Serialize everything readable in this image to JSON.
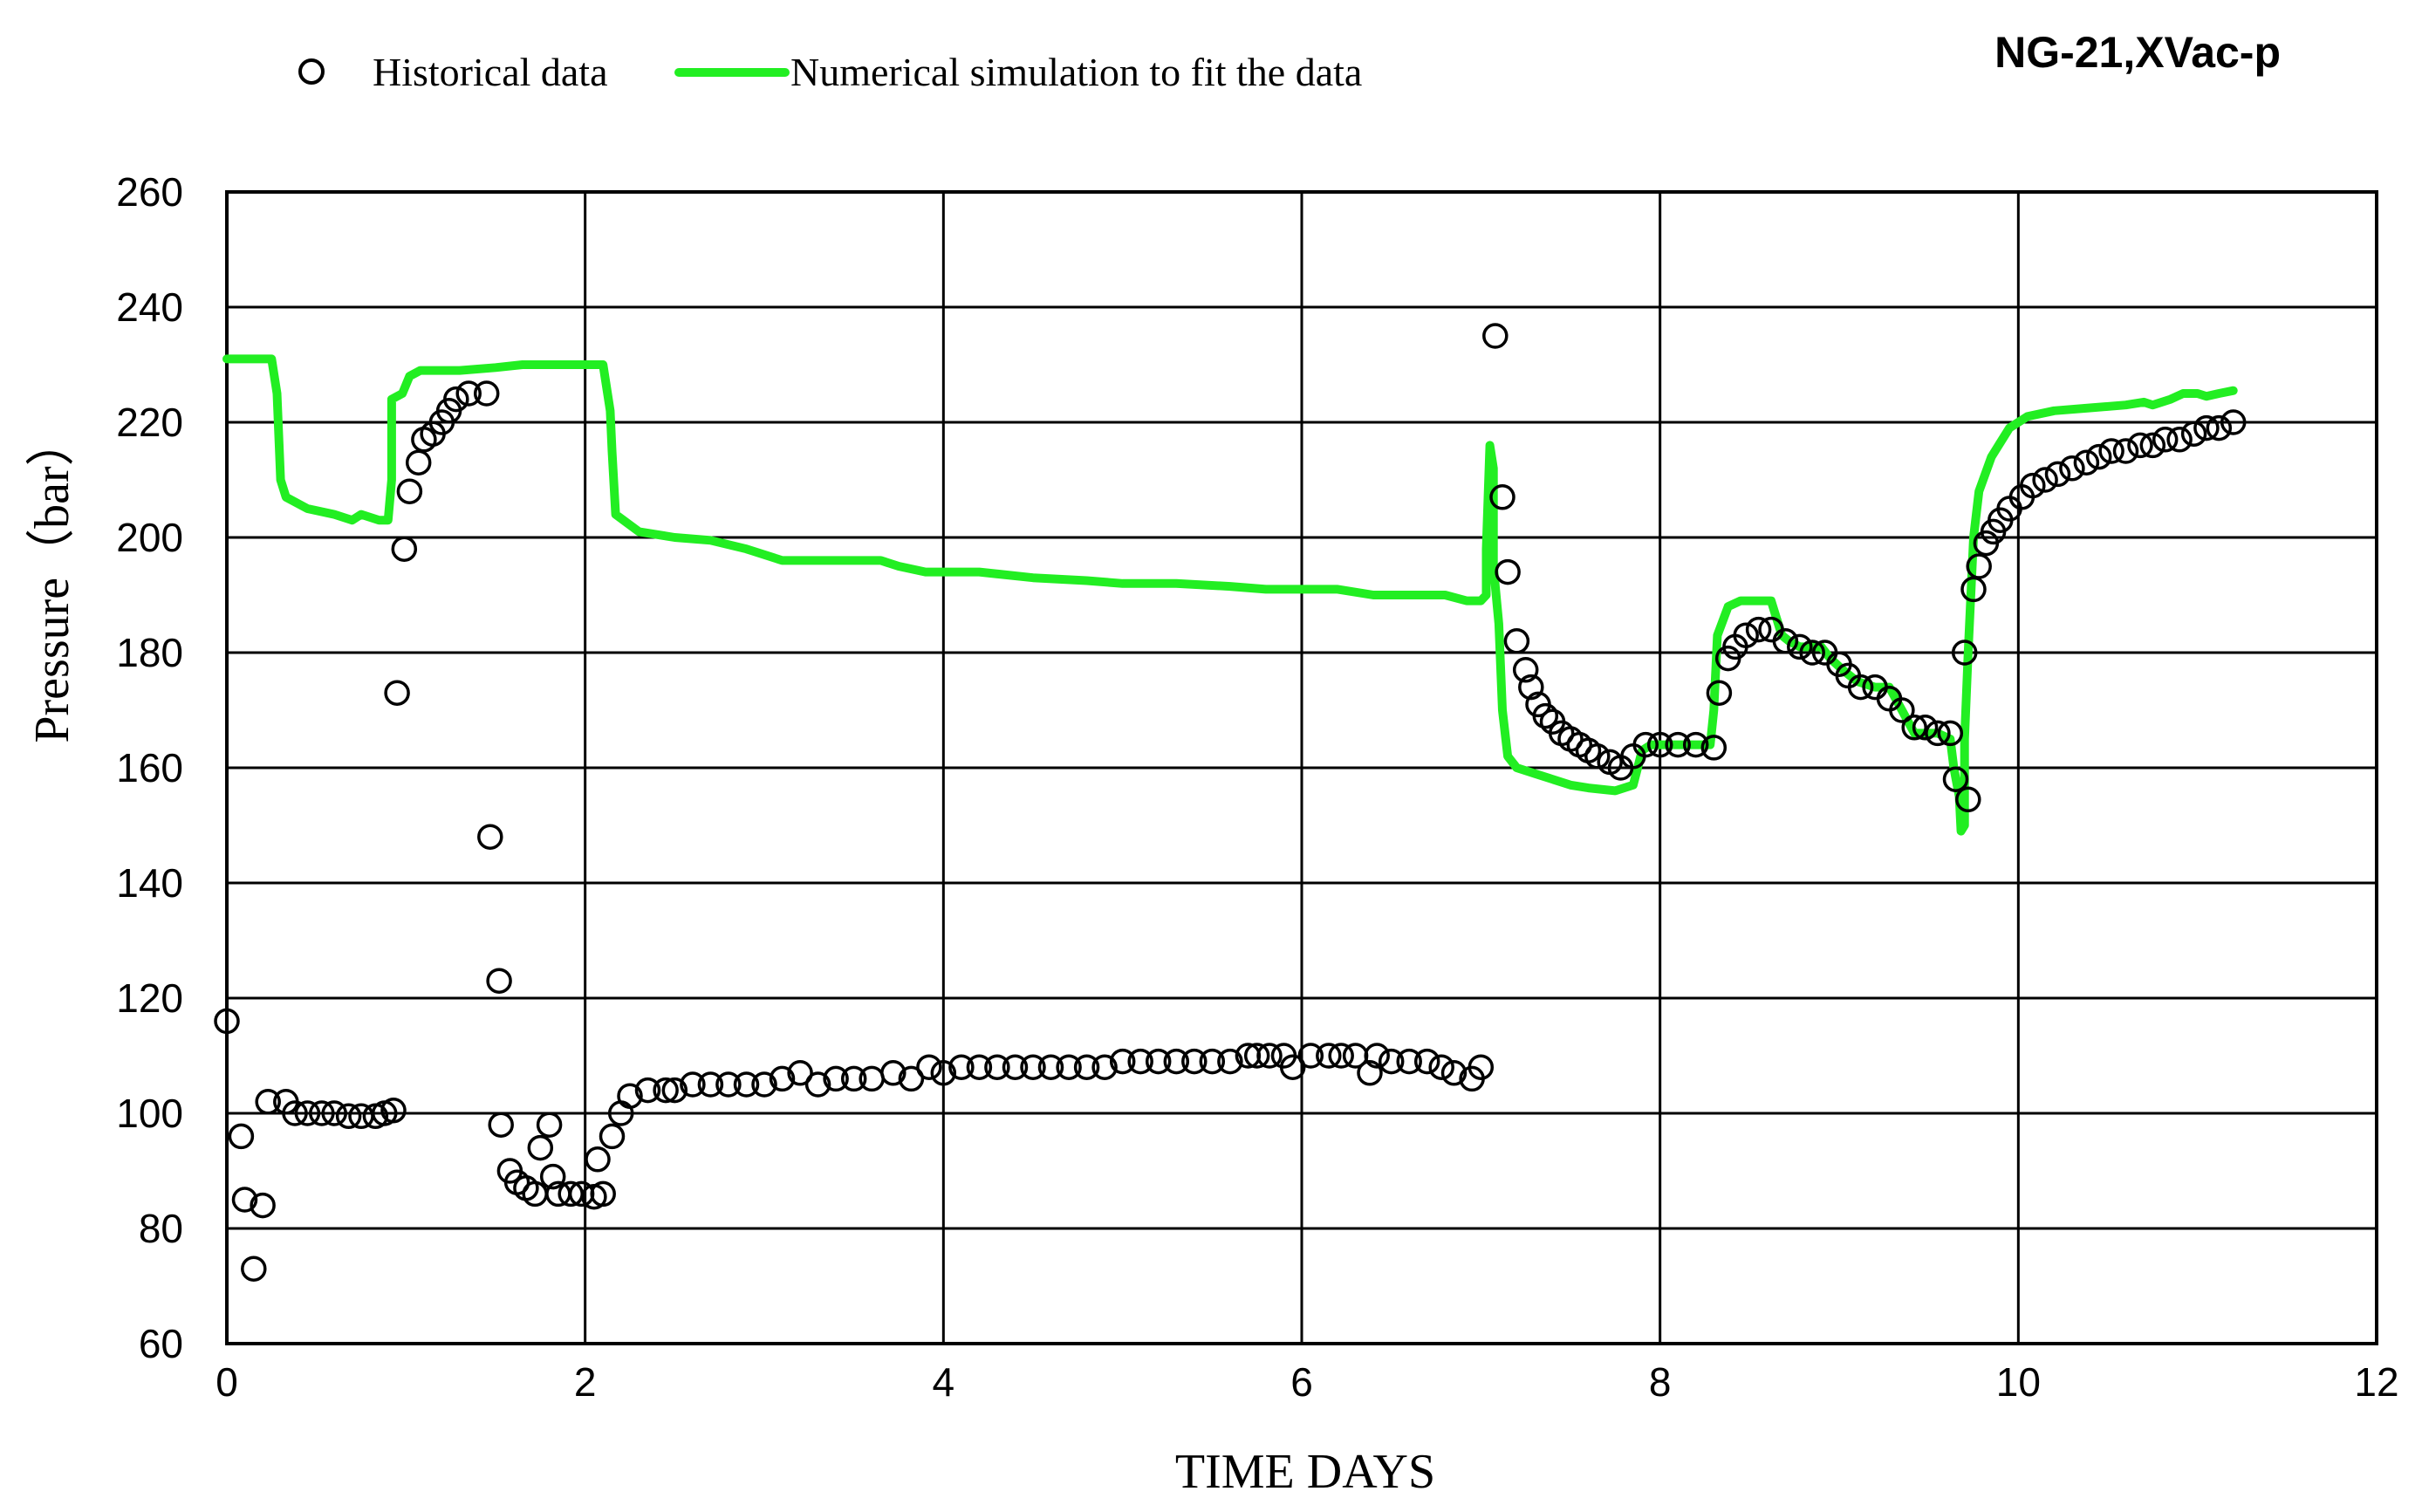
{
  "chart_data": {
    "type": "scatter",
    "title": "NG-21,XVac-p",
    "xlabel": "TIME DAYS",
    "ylabel": "Pressure（bar）",
    "xlim": [
      0,
      12
    ],
    "ylim": [
      60,
      260
    ],
    "xticks": [
      "0",
      "2",
      "4",
      "6",
      "8",
      "10",
      "12"
    ],
    "yticks": [
      "60",
      "80",
      "100",
      "120",
      "140",
      "160",
      "180",
      "200",
      "220",
      "240",
      "260"
    ],
    "grid": true,
    "legend_position": "top-left",
    "series": [
      {
        "name": "Historical data",
        "kind": "scatter",
        "marker": "open-circle",
        "color": "#000000",
        "points": [
          [
            0.0,
            116
          ],
          [
            0.08,
            96
          ],
          [
            0.1,
            85
          ],
          [
            0.15,
            73
          ],
          [
            0.2,
            84
          ],
          [
            0.23,
            102
          ],
          [
            0.33,
            102
          ],
          [
            0.38,
            100
          ],
          [
            0.45,
            100
          ],
          [
            0.53,
            100
          ],
          [
            0.6,
            100
          ],
          [
            0.68,
            99.5
          ],
          [
            0.75,
            99.5
          ],
          [
            0.83,
            99.5
          ],
          [
            0.88,
            100
          ],
          [
            0.93,
            100.5
          ],
          [
            0.95,
            173
          ],
          [
            0.99,
            198
          ],
          [
            1.02,
            208
          ],
          [
            1.07,
            213
          ],
          [
            1.1,
            217
          ],
          [
            1.15,
            218
          ],
          [
            1.2,
            220
          ],
          [
            1.24,
            222
          ],
          [
            1.28,
            224
          ],
          [
            1.35,
            225
          ],
          [
            1.45,
            225
          ],
          [
            1.47,
            148
          ],
          [
            1.52,
            123
          ],
          [
            1.53,
            98
          ],
          [
            1.58,
            90
          ],
          [
            1.62,
            88
          ],
          [
            1.67,
            87
          ],
          [
            1.72,
            86
          ],
          [
            1.75,
            94
          ],
          [
            1.8,
            98
          ],
          [
            1.82,
            89
          ],
          [
            1.85,
            86
          ],
          [
            1.92,
            86
          ],
          [
            1.98,
            86
          ],
          [
            2.05,
            85.5
          ],
          [
            2.1,
            86
          ],
          [
            2.07,
            92
          ],
          [
            2.15,
            96
          ],
          [
            2.2,
            100
          ],
          [
            2.25,
            103
          ],
          [
            2.35,
            104
          ],
          [
            2.45,
            104
          ],
          [
            2.5,
            104
          ],
          [
            2.6,
            105
          ],
          [
            2.7,
            105
          ],
          [
            2.8,
            105
          ],
          [
            2.9,
            105
          ],
          [
            3.0,
            105
          ],
          [
            3.1,
            106
          ],
          [
            3.2,
            107
          ],
          [
            3.3,
            105
          ],
          [
            3.4,
            106
          ],
          [
            3.5,
            106
          ],
          [
            3.6,
            106
          ],
          [
            3.72,
            107
          ],
          [
            3.82,
            106
          ],
          [
            3.92,
            108
          ],
          [
            4.0,
            107
          ],
          [
            4.1,
            108
          ],
          [
            4.2,
            108
          ],
          [
            4.3,
            108
          ],
          [
            4.4,
            108
          ],
          [
            4.5,
            108
          ],
          [
            4.6,
            108
          ],
          [
            4.7,
            108
          ],
          [
            4.8,
            108
          ],
          [
            4.9,
            108
          ],
          [
            5.0,
            109
          ],
          [
            5.1,
            109
          ],
          [
            5.2,
            109
          ],
          [
            5.3,
            109
          ],
          [
            5.4,
            109
          ],
          [
            5.5,
            109
          ],
          [
            5.6,
            109
          ],
          [
            5.7,
            110
          ],
          [
            5.75,
            110
          ],
          [
            5.82,
            110
          ],
          [
            5.9,
            110
          ],
          [
            5.95,
            108
          ],
          [
            6.05,
            110
          ],
          [
            6.15,
            110
          ],
          [
            6.22,
            110
          ],
          [
            6.3,
            110
          ],
          [
            6.38,
            107
          ],
          [
            6.42,
            110
          ],
          [
            6.5,
            109
          ],
          [
            6.6,
            109
          ],
          [
            6.7,
            109
          ],
          [
            6.78,
            108
          ],
          [
            6.85,
            107
          ],
          [
            6.95,
            106
          ],
          [
            7.0,
            108
          ],
          [
            7.08,
            235
          ],
          [
            7.12,
            207
          ],
          [
            7.15,
            194
          ],
          [
            7.2,
            182
          ],
          [
            7.25,
            177
          ],
          [
            7.28,
            174
          ],
          [
            7.32,
            171
          ],
          [
            7.36,
            169
          ],
          [
            7.4,
            168
          ],
          [
            7.45,
            166
          ],
          [
            7.5,
            165
          ],
          [
            7.55,
            164
          ],
          [
            7.6,
            163
          ],
          [
            7.65,
            162
          ],
          [
            7.72,
            161
          ],
          [
            7.78,
            160
          ],
          [
            7.85,
            162
          ],
          [
            7.92,
            164
          ],
          [
            8.0,
            164
          ],
          [
            8.1,
            164
          ],
          [
            8.2,
            164
          ],
          [
            8.3,
            163.5
          ],
          [
            8.33,
            173
          ],
          [
            8.38,
            179
          ],
          [
            8.42,
            181
          ],
          [
            8.48,
            183
          ],
          [
            8.55,
            184
          ],
          [
            8.62,
            184
          ],
          [
            8.7,
            182
          ],
          [
            8.78,
            181
          ],
          [
            8.85,
            180
          ],
          [
            8.92,
            180
          ],
          [
            9.0,
            178
          ],
          [
            9.05,
            176
          ],
          [
            9.12,
            174
          ],
          [
            9.2,
            174
          ],
          [
            9.28,
            172
          ],
          [
            9.35,
            170
          ],
          [
            9.42,
            167
          ],
          [
            9.48,
            167
          ],
          [
            9.55,
            166
          ],
          [
            9.62,
            166
          ],
          [
            9.65,
            158
          ],
          [
            9.72,
            154.5
          ],
          [
            9.7,
            180
          ],
          [
            9.75,
            191
          ],
          [
            9.78,
            195
          ],
          [
            9.82,
            199
          ],
          [
            9.86,
            201
          ],
          [
            9.9,
            203
          ],
          [
            9.95,
            205
          ],
          [
            10.02,
            207
          ],
          [
            10.08,
            209
          ],
          [
            10.15,
            210
          ],
          [
            10.22,
            211
          ],
          [
            10.3,
            212
          ],
          [
            10.38,
            213
          ],
          [
            10.45,
            214
          ],
          [
            10.52,
            215
          ],
          [
            10.6,
            215
          ],
          [
            10.68,
            216
          ],
          [
            10.75,
            216
          ],
          [
            10.82,
            217
          ],
          [
            10.9,
            217
          ],
          [
            10.98,
            218
          ],
          [
            11.05,
            219
          ],
          [
            11.12,
            219
          ],
          [
            11.2,
            220
          ]
        ]
      },
      {
        "name": "Numerical simulation to fit the data",
        "kind": "line",
        "color": "#22ee22",
        "points": [
          [
            0.0,
            231
          ],
          [
            0.25,
            231
          ],
          [
            0.28,
            225
          ],
          [
            0.3,
            210
          ],
          [
            0.33,
            207
          ],
          [
            0.45,
            205
          ],
          [
            0.6,
            204
          ],
          [
            0.7,
            203
          ],
          [
            0.75,
            204
          ],
          [
            0.85,
            203
          ],
          [
            0.9,
            203
          ],
          [
            0.92,
            210
          ],
          [
            0.92,
            224
          ],
          [
            0.98,
            225
          ],
          [
            1.02,
            228
          ],
          [
            1.08,
            229
          ],
          [
            1.3,
            229
          ],
          [
            1.5,
            229.5
          ],
          [
            1.65,
            230
          ],
          [
            2.1,
            230
          ],
          [
            2.14,
            222
          ],
          [
            2.15,
            215
          ],
          [
            2.17,
            204
          ],
          [
            2.3,
            201
          ],
          [
            2.5,
            200
          ],
          [
            2.7,
            199.5
          ],
          [
            2.9,
            198
          ],
          [
            3.1,
            196
          ],
          [
            3.3,
            196
          ],
          [
            3.5,
            196
          ],
          [
            3.65,
            196
          ],
          [
            3.75,
            195
          ],
          [
            3.9,
            194
          ],
          [
            4.2,
            194
          ],
          [
            4.5,
            193
          ],
          [
            4.8,
            192.5
          ],
          [
            5.0,
            192
          ],
          [
            5.3,
            192
          ],
          [
            5.6,
            191.5
          ],
          [
            5.8,
            191
          ],
          [
            6.0,
            191
          ],
          [
            6.2,
            191
          ],
          [
            6.4,
            190
          ],
          [
            6.6,
            190
          ],
          [
            6.8,
            190
          ],
          [
            6.92,
            189
          ],
          [
            7.0,
            189
          ],
          [
            7.03,
            190
          ],
          [
            7.03,
            198
          ],
          [
            7.05,
            216
          ],
          [
            7.07,
            212
          ],
          [
            7.07,
            195
          ],
          [
            7.1,
            185
          ],
          [
            7.12,
            170
          ],
          [
            7.15,
            162
          ],
          [
            7.2,
            160
          ],
          [
            7.3,
            159
          ],
          [
            7.5,
            157
          ],
          [
            7.6,
            156.5
          ],
          [
            7.75,
            156
          ],
          [
            7.85,
            157
          ],
          [
            7.9,
            163
          ],
          [
            7.95,
            164
          ],
          [
            8.0,
            164
          ],
          [
            8.2,
            164
          ],
          [
            8.28,
            164
          ],
          [
            8.3,
            170
          ],
          [
            8.32,
            183
          ],
          [
            8.38,
            188
          ],
          [
            8.45,
            189
          ],
          [
            8.55,
            189
          ],
          [
            8.62,
            189
          ],
          [
            8.65,
            186
          ],
          [
            8.68,
            183
          ],
          [
            8.72,
            182
          ],
          [
            8.78,
            181
          ],
          [
            8.9,
            181
          ],
          [
            8.95,
            179
          ],
          [
            9.02,
            177
          ],
          [
            9.1,
            175
          ],
          [
            9.2,
            174
          ],
          [
            9.28,
            174
          ],
          [
            9.35,
            170
          ],
          [
            9.42,
            166
          ],
          [
            9.55,
            166
          ],
          [
            9.62,
            165
          ],
          [
            9.64,
            160
          ],
          [
            9.67,
            155
          ],
          [
            9.68,
            149
          ],
          [
            9.7,
            150
          ],
          [
            9.7,
            165
          ],
          [
            9.72,
            180
          ],
          [
            9.75,
            200
          ],
          [
            9.78,
            208
          ],
          [
            9.85,
            214
          ],
          [
            9.95,
            219
          ],
          [
            10.05,
            221
          ],
          [
            10.2,
            222
          ],
          [
            10.4,
            222.5
          ],
          [
            10.6,
            223
          ],
          [
            10.7,
            223.5
          ],
          [
            10.75,
            223
          ],
          [
            10.85,
            224
          ],
          [
            10.92,
            225
          ],
          [
            11.0,
            225
          ],
          [
            11.05,
            224.5
          ],
          [
            11.12,
            225
          ],
          [
            11.2,
            225.5
          ]
        ]
      }
    ]
  }
}
